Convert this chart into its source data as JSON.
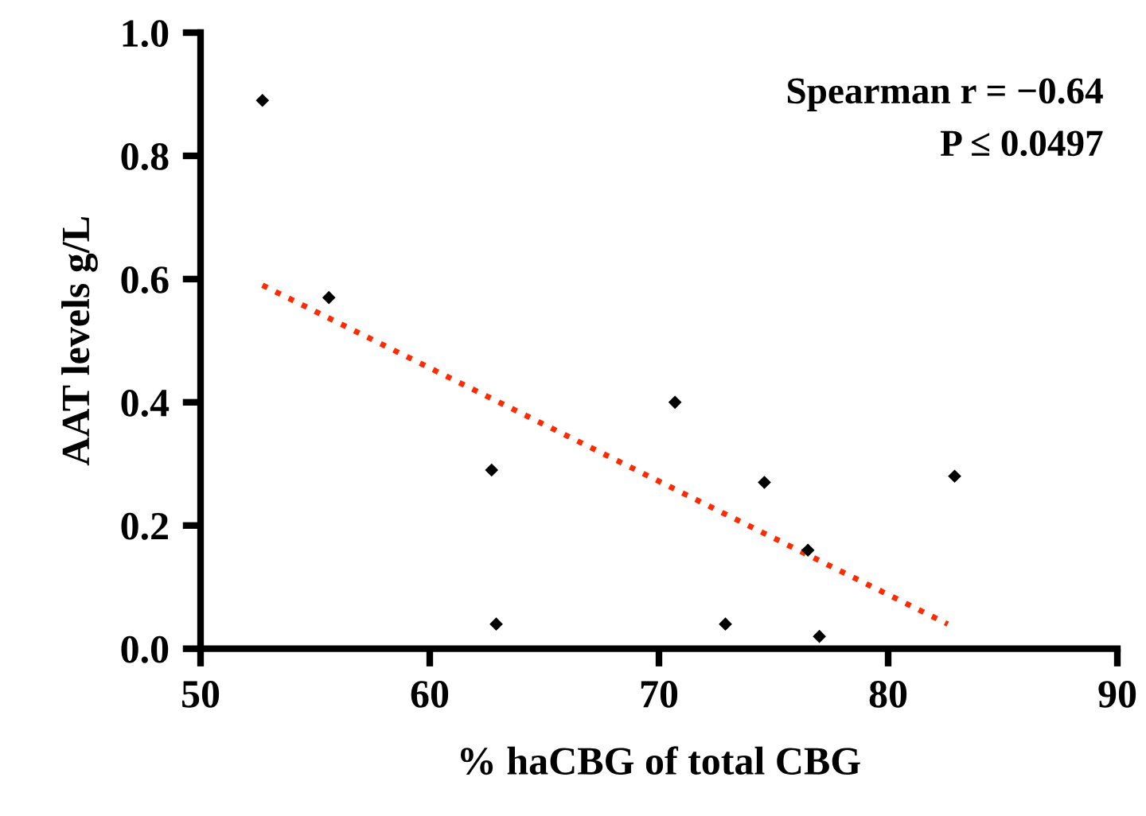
{
  "chart_data": {
    "type": "scatter",
    "xlabel": "% haCBG of total CBG",
    "ylabel": "AAT levels g/L",
    "xlim": [
      50,
      90
    ],
    "xticks": [
      50,
      60,
      70,
      80,
      90
    ],
    "ylim": [
      0,
      1.0
    ],
    "yticks": [
      {
        "value": 0,
        "label": "0.0"
      },
      {
        "value": 0.2,
        "label": "0.2"
      },
      {
        "value": 0.4,
        "label": "0.4"
      },
      {
        "value": 0.6,
        "label": "0.6"
      },
      {
        "value": 0.8,
        "label": "0.8"
      },
      {
        "value": 1.0,
        "label": "1.0"
      }
    ],
    "grid": false,
    "legend": false,
    "series": [
      {
        "color": "#000000",
        "marker": "diamond",
        "x": [
          52.7,
          55.6,
          62.7,
          62.9,
          70.7,
          74.6,
          82.9,
          76.5,
          72.9,
          77.0
        ],
        "values": [
          0.89,
          0.57,
          0.29,
          0.04,
          0.4,
          0.27,
          0.28,
          0.16,
          0.04,
          0.02
        ]
      },
      {
        "type": "line",
        "color": "#ff2a00",
        "line_style": "dotted",
        "x": [
          52.7,
          82.6
        ],
        "values": [
          0.59,
          0.04
        ]
      }
    ],
    "annotations": [
      "Spearman r = −0.64",
      "P ≤ 0.0497"
    ]
  }
}
